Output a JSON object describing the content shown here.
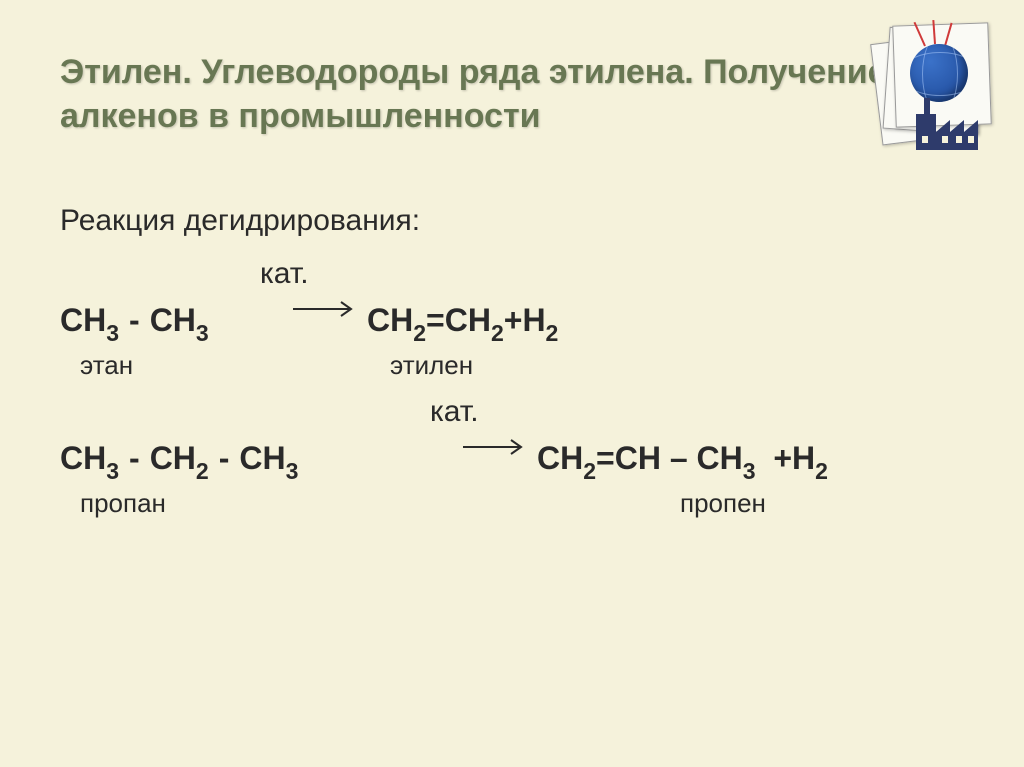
{
  "title": "Этилен. Углеводороды ряда этилена. Получение алкенов в промышленности",
  "heading": "Реакция дегидрирования:",
  "catalyst_label": "кат.",
  "reaction1": {
    "lhs_html": "СН<span class='sub'>3</span><span class='mspace'></span>-<span class='mspace'></span>СН<span class='sub'>3</span>",
    "rhs_html": "СН<span class='sub'>2</span>=СН<span class='sub'>2</span>+Н<span class='sub'>2</span>",
    "label_left": "этан",
    "label_right": "этилен"
  },
  "reaction2": {
    "lhs_html": "СН<span class='sub'>3</span><span class='mspace'></span>-<span class='mspace'></span>СН<span class='sub'>2</span><span class='mspace'></span>-<span class='mspace'></span>СН<span class='sub'>3</span>",
    "rhs_html": "СН<span class='sub'>2</span>=СН – СН<span class='sub'>3</span>&nbsp;&nbsp;+Н<span class='sub'>2</span>",
    "label_left": "пропан",
    "label_right": "пропен"
  },
  "colors": {
    "background": "#f5f2db",
    "title_color": "#687753",
    "text_color": "#2a2a2a",
    "globe_light": "#3b72c9",
    "globe_dark": "#1b4593",
    "factory_color": "#2e3b6b",
    "spark_color": "#d03a3a"
  }
}
